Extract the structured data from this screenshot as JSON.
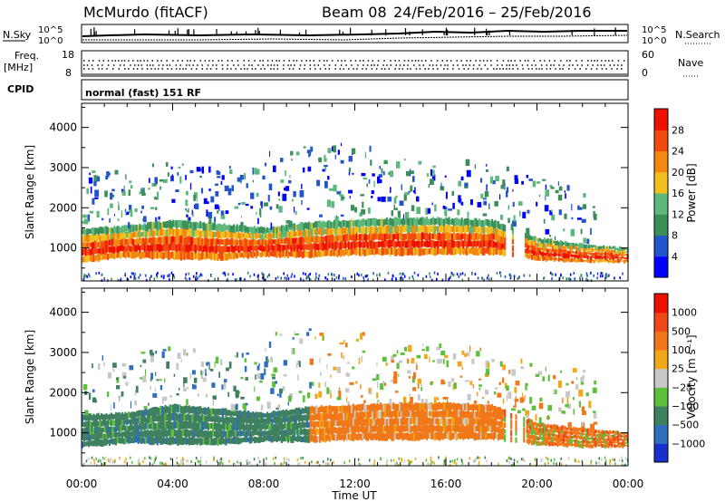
{
  "header": {
    "station": "McMurdo (fitACF)",
    "beam": "Beam 08",
    "date_range": "24/Feb/2016 – 25/Feb/2016"
  },
  "params": {
    "nsky_label": "N.Sky",
    "nsearch_label": "N.Search",
    "nsky_ticks": [
      "10^5",
      "10^0"
    ],
    "nsearch_ticks": [
      "10^5",
      "10^0"
    ],
    "freq_label_1": "Freq.",
    "freq_label_2": "[MHz]",
    "freq_ticks": [
      "18",
      "8"
    ],
    "nave_label": "Nave",
    "nave_ticks": [
      "60",
      "0"
    ],
    "cpid_label": "CPID",
    "cpid_value": "normal (fast) 151 RF"
  },
  "chart_data": [
    {
      "type": "heatmap",
      "panel": "power",
      "ylabel": "Slant Range [km]",
      "xlabel": "",
      "x_ticks": [
        "00:00",
        "04:00",
        "08:00",
        "12:00",
        "16:00",
        "20:00",
        "00:00"
      ],
      "xlim": [
        0,
        24
      ],
      "y_ticks": [
        1000,
        2000,
        3000,
        4000
      ],
      "ylim": [
        180,
        4600
      ],
      "colorbar": {
        "label": "Power [dB]",
        "ticks": [
          "28",
          "24",
          "20",
          "16",
          "12",
          "8",
          "4"
        ],
        "colors": [
          "#0000ff",
          "#2255cc",
          "#3d8f5a",
          "#5db87c",
          "#f0c020",
          "#f28a10",
          "#f24a10",
          "#ee1100"
        ]
      },
      "echo_band": [
        {
          "hour": 0,
          "range_low": 640,
          "range_high": 1480
        },
        {
          "hour": 2,
          "range_low": 760,
          "range_high": 1550
        },
        {
          "hour": 4,
          "range_low": 720,
          "range_high": 1700
        },
        {
          "hour": 6,
          "range_low": 700,
          "range_high": 1600
        },
        {
          "hour": 8,
          "range_low": 780,
          "range_high": 1500
        },
        {
          "hour": 10,
          "range_low": 760,
          "range_high": 1650
        },
        {
          "hour": 12,
          "range_low": 820,
          "range_high": 1700
        },
        {
          "hour": 14,
          "range_low": 820,
          "range_high": 1750
        },
        {
          "hour": 16,
          "range_low": 830,
          "range_high": 1750
        },
        {
          "hour": 18,
          "range_low": 840,
          "range_high": 1700
        },
        {
          "hour": 20,
          "range_low": 700,
          "range_high": 1250
        },
        {
          "hour": 22,
          "range_low": 640,
          "range_high": 1100
        },
        {
          "hour": 24,
          "range_low": 640,
          "range_high": 1000
        }
      ]
    },
    {
      "type": "heatmap",
      "panel": "velocity",
      "ylabel": "Slant Range [km]",
      "xlabel": "Time UT",
      "x_ticks": [
        "00:00",
        "04:00",
        "08:00",
        "12:00",
        "16:00",
        "20:00",
        "00:00"
      ],
      "xlim": [
        0,
        24
      ],
      "y_ticks": [
        1000,
        2000,
        3000,
        4000
      ],
      "ylim": [
        180,
        4600
      ],
      "colorbar": {
        "label": "Velocity [m s⁻¹]",
        "ticks": [
          "1000",
          "500",
          "100",
          "25",
          "−25",
          "−100",
          "−500",
          "−1000"
        ],
        "colors": [
          "#1a2ecc",
          "#2f6dbf",
          "#3e8060",
          "#5cc03c",
          "#c8c8c8",
          "#f0a818",
          "#f07818",
          "#f04818",
          "#ee1100"
        ]
      },
      "echo_band": [
        {
          "hour": 0,
          "range_low": 640,
          "range_high": 1450
        },
        {
          "hour": 2,
          "range_low": 740,
          "range_high": 1500
        },
        {
          "hour": 4,
          "range_low": 700,
          "range_high": 1700
        },
        {
          "hour": 6,
          "range_low": 700,
          "range_high": 1600
        },
        {
          "hour": 8,
          "range_low": 780,
          "range_high": 1500
        },
        {
          "hour": 10,
          "range_low": 760,
          "range_high": 1650
        },
        {
          "hour": 12,
          "range_low": 820,
          "range_high": 1700
        },
        {
          "hour": 14,
          "range_low": 820,
          "range_high": 1750
        },
        {
          "hour": 16,
          "range_low": 830,
          "range_high": 1750
        },
        {
          "hour": 18,
          "range_low": 840,
          "range_high": 1700
        },
        {
          "hour": 20,
          "range_low": 700,
          "range_high": 1250
        },
        {
          "hour": 22,
          "range_low": 640,
          "range_high": 1100
        },
        {
          "hour": 24,
          "range_low": 640,
          "range_high": 1000
        }
      ]
    }
  ]
}
